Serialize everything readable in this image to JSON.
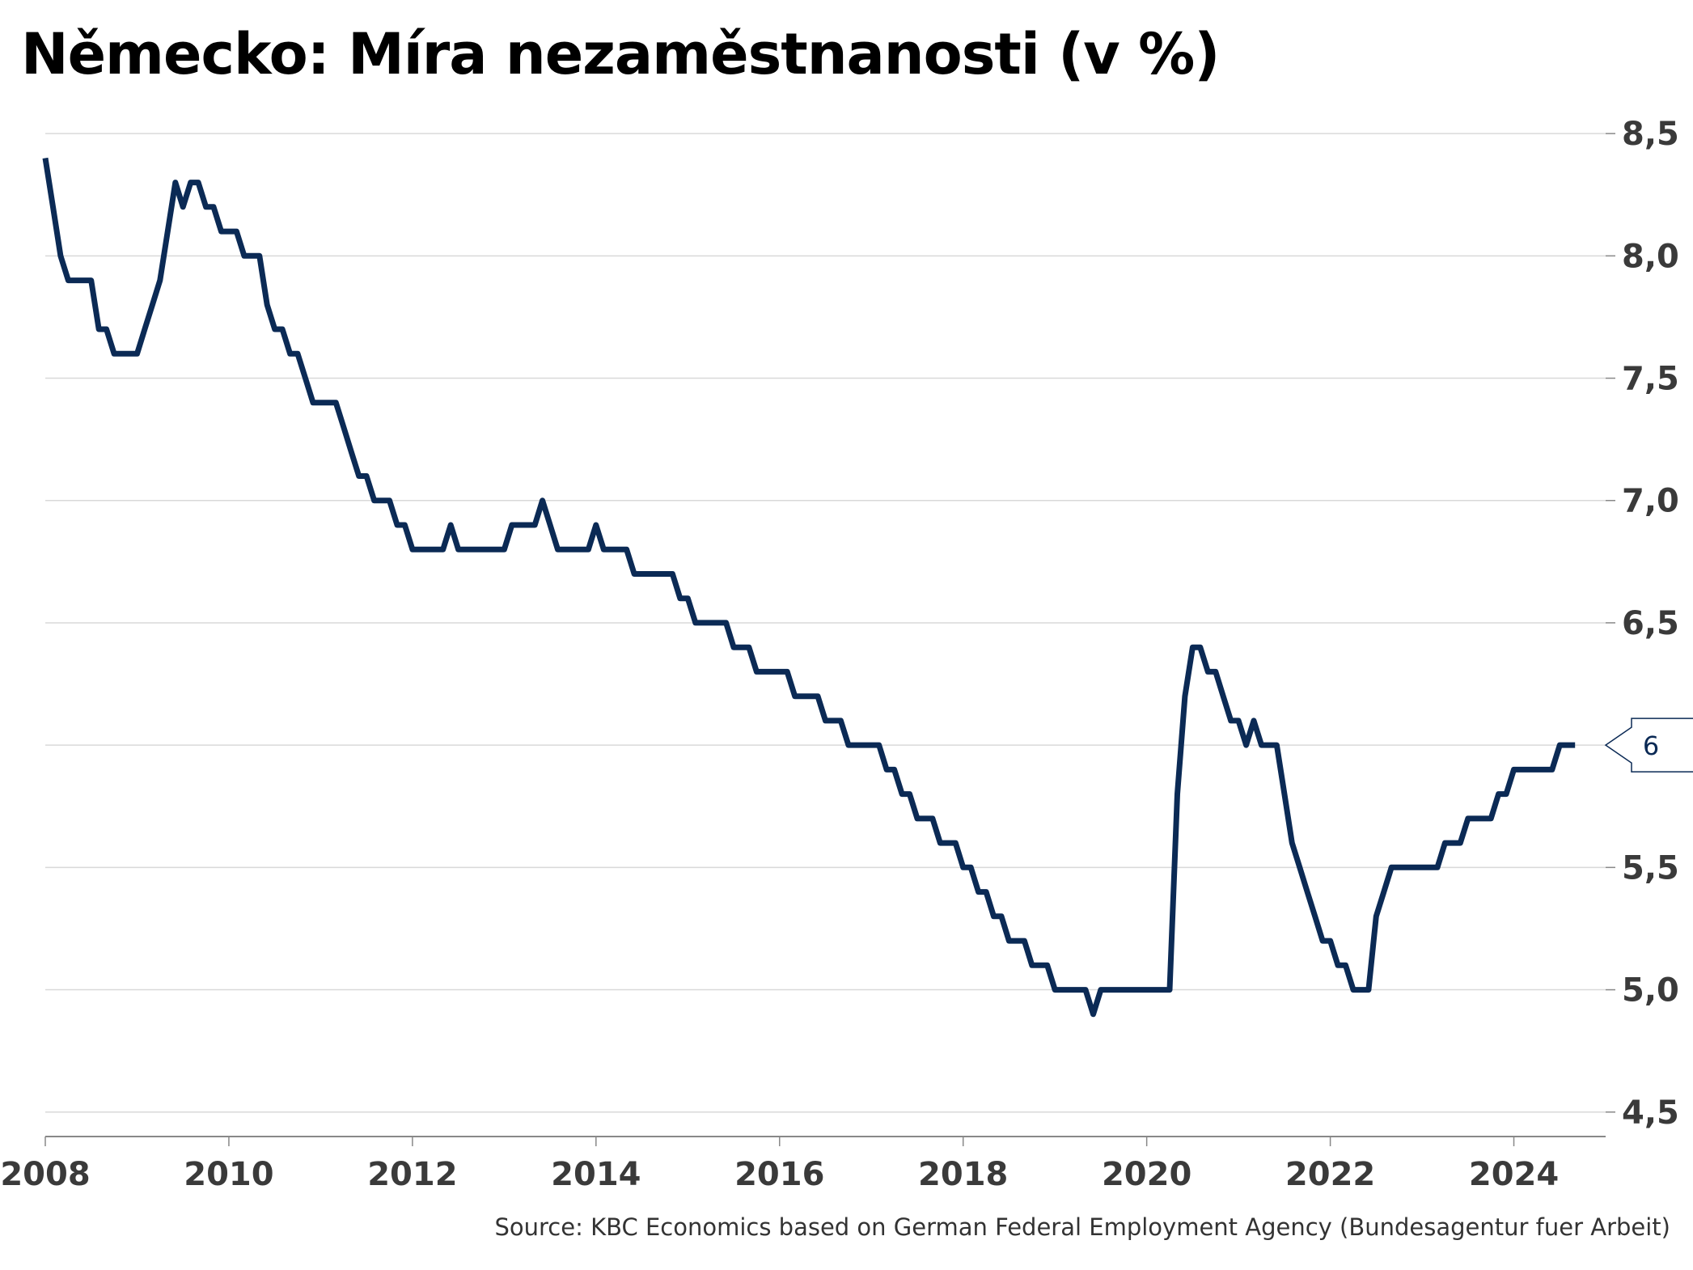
{
  "chart_data": {
    "type": "line",
    "title": "Německo: Míra nezaměstnanosti (v %)",
    "xlabel": "",
    "ylabel": "",
    "x_ticks": [
      "2008",
      "2010",
      "2012",
      "2014",
      "2016",
      "2018",
      "2020",
      "2022",
      "2024"
    ],
    "y_ticks": [
      "4,5",
      "5,0",
      "5,5",
      "6,0",
      "6,5",
      "7,0",
      "7,5",
      "8,0",
      "8,5"
    ],
    "y_tick_values": [
      4.5,
      5.0,
      5.5,
      6.0,
      6.5,
      7.0,
      7.5,
      8.0,
      8.5
    ],
    "xlim": [
      "2008-01",
      "2025-01"
    ],
    "ylim": [
      4.4,
      8.55
    ],
    "grid": "horizontal",
    "last_value_label": "6",
    "series": [
      {
        "color": "#0b2a55",
        "points": [
          [
            "2008-01",
            8.4
          ],
          [
            "2008-02",
            8.2
          ],
          [
            "2008-03",
            8.0
          ],
          [
            "2008-04",
            7.9
          ],
          [
            "2008-05",
            7.9
          ],
          [
            "2008-06",
            7.9
          ],
          [
            "2008-07",
            7.9
          ],
          [
            "2008-08",
            7.7
          ],
          [
            "2008-09",
            7.7
          ],
          [
            "2008-10",
            7.6
          ],
          [
            "2008-11",
            7.6
          ],
          [
            "2008-12",
            7.6
          ],
          [
            "2009-01",
            7.6
          ],
          [
            "2009-02",
            7.7
          ],
          [
            "2009-03",
            7.8
          ],
          [
            "2009-04",
            7.9
          ],
          [
            "2009-05",
            8.1
          ],
          [
            "2009-06",
            8.3
          ],
          [
            "2009-07",
            8.2
          ],
          [
            "2009-08",
            8.3
          ],
          [
            "2009-09",
            8.3
          ],
          [
            "2009-10",
            8.2
          ],
          [
            "2009-11",
            8.2
          ],
          [
            "2009-12",
            8.1
          ],
          [
            "2010-01",
            8.1
          ],
          [
            "2010-02",
            8.1
          ],
          [
            "2010-03",
            8.0
          ],
          [
            "2010-04",
            8.0
          ],
          [
            "2010-05",
            8.0
          ],
          [
            "2010-06",
            7.8
          ],
          [
            "2010-07",
            7.7
          ],
          [
            "2010-08",
            7.7
          ],
          [
            "2010-09",
            7.6
          ],
          [
            "2010-10",
            7.6
          ],
          [
            "2010-11",
            7.5
          ],
          [
            "2010-12",
            7.4
          ],
          [
            "2011-01",
            7.4
          ],
          [
            "2011-02",
            7.4
          ],
          [
            "2011-03",
            7.4
          ],
          [
            "2011-04",
            7.3
          ],
          [
            "2011-05",
            7.2
          ],
          [
            "2011-06",
            7.1
          ],
          [
            "2011-07",
            7.1
          ],
          [
            "2011-08",
            7.0
          ],
          [
            "2011-09",
            7.0
          ],
          [
            "2011-10",
            7.0
          ],
          [
            "2011-11",
            6.9
          ],
          [
            "2011-12",
            6.9
          ],
          [
            "2012-01",
            6.8
          ],
          [
            "2012-02",
            6.8
          ],
          [
            "2012-03",
            6.8
          ],
          [
            "2012-04",
            6.8
          ],
          [
            "2012-05",
            6.8
          ],
          [
            "2012-06",
            6.9
          ],
          [
            "2012-07",
            6.8
          ],
          [
            "2012-08",
            6.8
          ],
          [
            "2012-09",
            6.8
          ],
          [
            "2012-10",
            6.8
          ],
          [
            "2012-11",
            6.8
          ],
          [
            "2012-12",
            6.8
          ],
          [
            "2013-01",
            6.8
          ],
          [
            "2013-02",
            6.9
          ],
          [
            "2013-03",
            6.9
          ],
          [
            "2013-04",
            6.9
          ],
          [
            "2013-05",
            6.9
          ],
          [
            "2013-06",
            7.0
          ],
          [
            "2013-07",
            6.9
          ],
          [
            "2013-08",
            6.8
          ],
          [
            "2013-09",
            6.8
          ],
          [
            "2013-10",
            6.8
          ],
          [
            "2013-11",
            6.8
          ],
          [
            "2013-12",
            6.8
          ],
          [
            "2014-01",
            6.9
          ],
          [
            "2014-02",
            6.8
          ],
          [
            "2014-03",
            6.8
          ],
          [
            "2014-04",
            6.8
          ],
          [
            "2014-05",
            6.8
          ],
          [
            "2014-06",
            6.7
          ],
          [
            "2014-07",
            6.7
          ],
          [
            "2014-08",
            6.7
          ],
          [
            "2014-09",
            6.7
          ],
          [
            "2014-10",
            6.7
          ],
          [
            "2014-11",
            6.7
          ],
          [
            "2014-12",
            6.6
          ],
          [
            "2015-01",
            6.6
          ],
          [
            "2015-02",
            6.5
          ],
          [
            "2015-03",
            6.5
          ],
          [
            "2015-04",
            6.5
          ],
          [
            "2015-05",
            6.5
          ],
          [
            "2015-06",
            6.5
          ],
          [
            "2015-07",
            6.4
          ],
          [
            "2015-08",
            6.4
          ],
          [
            "2015-09",
            6.4
          ],
          [
            "2015-10",
            6.3
          ],
          [
            "2015-11",
            6.3
          ],
          [
            "2015-12",
            6.3
          ],
          [
            "2016-01",
            6.3
          ],
          [
            "2016-02",
            6.3
          ],
          [
            "2016-03",
            6.2
          ],
          [
            "2016-04",
            6.2
          ],
          [
            "2016-05",
            6.2
          ],
          [
            "2016-06",
            6.2
          ],
          [
            "2016-07",
            6.1
          ],
          [
            "2016-08",
            6.1
          ],
          [
            "2016-09",
            6.1
          ],
          [
            "2016-10",
            6.0
          ],
          [
            "2016-11",
            6.0
          ],
          [
            "2016-12",
            6.0
          ],
          [
            "2017-01",
            6.0
          ],
          [
            "2017-02",
            6.0
          ],
          [
            "2017-03",
            5.9
          ],
          [
            "2017-04",
            5.9
          ],
          [
            "2017-05",
            5.8
          ],
          [
            "2017-06",
            5.8
          ],
          [
            "2017-07",
            5.7
          ],
          [
            "2017-08",
            5.7
          ],
          [
            "2017-09",
            5.7
          ],
          [
            "2017-10",
            5.6
          ],
          [
            "2017-11",
            5.6
          ],
          [
            "2017-12",
            5.6
          ],
          [
            "2018-01",
            5.5
          ],
          [
            "2018-02",
            5.5
          ],
          [
            "2018-03",
            5.4
          ],
          [
            "2018-04",
            5.4
          ],
          [
            "2018-05",
            5.3
          ],
          [
            "2018-06",
            5.3
          ],
          [
            "2018-07",
            5.2
          ],
          [
            "2018-08",
            5.2
          ],
          [
            "2018-09",
            5.2
          ],
          [
            "2018-10",
            5.1
          ],
          [
            "2018-11",
            5.1
          ],
          [
            "2018-12",
            5.1
          ],
          [
            "2019-01",
            5.0
          ],
          [
            "2019-02",
            5.0
          ],
          [
            "2019-03",
            5.0
          ],
          [
            "2019-04",
            5.0
          ],
          [
            "2019-05",
            5.0
          ],
          [
            "2019-06",
            4.9
          ],
          [
            "2019-07",
            5.0
          ],
          [
            "2019-08",
            5.0
          ],
          [
            "2019-09",
            5.0
          ],
          [
            "2019-10",
            5.0
          ],
          [
            "2019-11",
            5.0
          ],
          [
            "2019-12",
            5.0
          ],
          [
            "2020-01",
            5.0
          ],
          [
            "2020-02",
            5.0
          ],
          [
            "2020-03",
            5.0
          ],
          [
            "2020-04",
            5.0
          ],
          [
            "2020-05",
            5.8
          ],
          [
            "2020-06",
            6.2
          ],
          [
            "2020-07",
            6.4
          ],
          [
            "2020-08",
            6.4
          ],
          [
            "2020-09",
            6.3
          ],
          [
            "2020-10",
            6.3
          ],
          [
            "2020-11",
            6.2
          ],
          [
            "2020-12",
            6.1
          ],
          [
            "2021-01",
            6.1
          ],
          [
            "2021-02",
            6.0
          ],
          [
            "2021-03",
            6.1
          ],
          [
            "2021-04",
            6.0
          ],
          [
            "2021-05",
            6.0
          ],
          [
            "2021-06",
            6.0
          ],
          [
            "2021-07",
            5.8
          ],
          [
            "2021-08",
            5.6
          ],
          [
            "2021-09",
            5.5
          ],
          [
            "2021-10",
            5.4
          ],
          [
            "2021-11",
            5.3
          ],
          [
            "2021-12",
            5.2
          ],
          [
            "2022-01",
            5.2
          ],
          [
            "2022-02",
            5.1
          ],
          [
            "2022-03",
            5.1
          ],
          [
            "2022-04",
            5.0
          ],
          [
            "2022-05",
            5.0
          ],
          [
            "2022-06",
            5.0
          ],
          [
            "2022-07",
            5.3
          ],
          [
            "2022-08",
            5.4
          ],
          [
            "2022-09",
            5.5
          ],
          [
            "2022-10",
            5.5
          ],
          [
            "2022-11",
            5.5
          ],
          [
            "2022-12",
            5.5
          ],
          [
            "2023-01",
            5.5
          ],
          [
            "2023-02",
            5.5
          ],
          [
            "2023-03",
            5.5
          ],
          [
            "2023-04",
            5.6
          ],
          [
            "2023-05",
            5.6
          ],
          [
            "2023-06",
            5.6
          ],
          [
            "2023-07",
            5.7
          ],
          [
            "2023-08",
            5.7
          ],
          [
            "2023-09",
            5.7
          ],
          [
            "2023-10",
            5.7
          ],
          [
            "2023-11",
            5.8
          ],
          [
            "2023-12",
            5.8
          ],
          [
            "2024-01",
            5.9
          ],
          [
            "2024-02",
            5.9
          ],
          [
            "2024-03",
            5.9
          ],
          [
            "2024-04",
            5.9
          ],
          [
            "2024-05",
            5.9
          ],
          [
            "2024-06",
            5.9
          ],
          [
            "2024-07",
            6.0
          ],
          [
            "2024-08",
            6.0
          ],
          [
            "2024-09",
            6.0
          ]
        ]
      }
    ]
  },
  "source": "Source: KBC Economics based on German Federal Employment Agency (Bundesagentur fuer Arbeit)"
}
